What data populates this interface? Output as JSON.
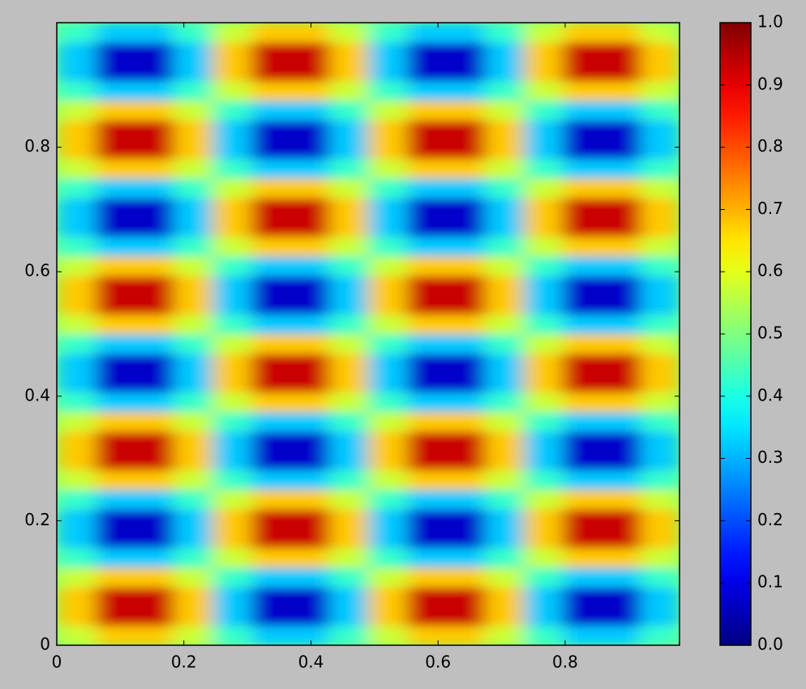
{
  "chart_data": {
    "type": "heatmap",
    "colormap": "jet",
    "xlim": [
      0,
      0.98
    ],
    "ylim": [
      0,
      1
    ],
    "xticks": [
      0,
      0.2,
      0.4,
      0.6,
      0.8
    ],
    "yticks": [
      0,
      0.2,
      0.4,
      0.6,
      0.8
    ],
    "clim": [
      0,
      1
    ],
    "colorbar_ticks": [
      {
        "value": 0,
        "label": "0.0"
      },
      {
        "value": 0.1,
        "label": "0.1"
      },
      {
        "value": 0.2,
        "label": "0.2"
      },
      {
        "value": 0.3,
        "label": "0.3"
      },
      {
        "value": 0.4,
        "label": "0.4"
      },
      {
        "value": 0.5,
        "label": "0.5"
      },
      {
        "value": 0.6,
        "label": "0.6"
      },
      {
        "value": 0.7,
        "label": "0.7"
      },
      {
        "value": 0.8,
        "label": "0.8"
      },
      {
        "value": 0.9,
        "label": "0.9"
      },
      {
        "value": 1,
        "label": "1.0"
      }
    ],
    "z": [
      [
        0.573,
        0.677,
        0.677,
        0.573,
        0.427,
        0.323,
        0.323,
        0.427,
        0.573,
        0.677,
        0.677,
        0.573,
        0.427,
        0.323,
        0.323,
        0.427
      ],
      [
        0.677,
        0.927,
        0.927,
        0.677,
        0.323,
        0.073,
        0.073,
        0.323,
        0.677,
        0.927,
        0.927,
        0.677,
        0.323,
        0.073,
        0.073,
        0.323
      ],
      [
        0.677,
        0.927,
        0.927,
        0.677,
        0.323,
        0.073,
        0.073,
        0.323,
        0.677,
        0.927,
        0.927,
        0.677,
        0.323,
        0.073,
        0.073,
        0.323
      ],
      [
        0.573,
        0.677,
        0.677,
        0.573,
        0.427,
        0.323,
        0.323,
        0.427,
        0.573,
        0.677,
        0.677,
        0.573,
        0.427,
        0.323,
        0.323,
        0.427
      ],
      [
        0.427,
        0.323,
        0.323,
        0.427,
        0.573,
        0.677,
        0.677,
        0.573,
        0.427,
        0.323,
        0.323,
        0.427,
        0.573,
        0.677,
        0.677,
        0.573
      ],
      [
        0.323,
        0.073,
        0.073,
        0.323,
        0.677,
        0.927,
        0.927,
        0.677,
        0.323,
        0.073,
        0.073,
        0.323,
        0.677,
        0.927,
        0.927,
        0.677
      ],
      [
        0.323,
        0.073,
        0.073,
        0.323,
        0.677,
        0.927,
        0.927,
        0.677,
        0.323,
        0.073,
        0.073,
        0.323,
        0.677,
        0.927,
        0.927,
        0.677
      ],
      [
        0.427,
        0.323,
        0.323,
        0.427,
        0.573,
        0.677,
        0.677,
        0.573,
        0.427,
        0.323,
        0.323,
        0.427,
        0.573,
        0.677,
        0.677,
        0.573
      ],
      [
        0.573,
        0.677,
        0.677,
        0.573,
        0.427,
        0.323,
        0.323,
        0.427,
        0.573,
        0.677,
        0.677,
        0.573,
        0.427,
        0.323,
        0.323,
        0.427
      ],
      [
        0.677,
        0.927,
        0.927,
        0.677,
        0.323,
        0.073,
        0.073,
        0.323,
        0.677,
        0.927,
        0.927,
        0.677,
        0.323,
        0.073,
        0.073,
        0.323
      ],
      [
        0.677,
        0.927,
        0.927,
        0.677,
        0.323,
        0.073,
        0.073,
        0.323,
        0.677,
        0.927,
        0.927,
        0.677,
        0.323,
        0.073,
        0.073,
        0.323
      ],
      [
        0.573,
        0.677,
        0.677,
        0.573,
        0.427,
        0.323,
        0.323,
        0.427,
        0.573,
        0.677,
        0.677,
        0.573,
        0.427,
        0.323,
        0.323,
        0.427
      ],
      [
        0.427,
        0.323,
        0.323,
        0.427,
        0.573,
        0.677,
        0.677,
        0.573,
        0.427,
        0.323,
        0.323,
        0.427,
        0.573,
        0.677,
        0.677,
        0.573
      ],
      [
        0.323,
        0.073,
        0.073,
        0.323,
        0.677,
        0.927,
        0.927,
        0.677,
        0.323,
        0.073,
        0.073,
        0.323,
        0.677,
        0.927,
        0.927,
        0.677
      ],
      [
        0.323,
        0.073,
        0.073,
        0.323,
        0.677,
        0.927,
        0.927,
        0.677,
        0.323,
        0.073,
        0.073,
        0.323,
        0.677,
        0.927,
        0.927,
        0.677
      ],
      [
        0.427,
        0.323,
        0.323,
        0.427,
        0.573,
        0.677,
        0.677,
        0.573,
        0.427,
        0.323,
        0.323,
        0.427,
        0.573,
        0.677,
        0.677,
        0.573
      ],
      [
        0.573,
        0.677,
        0.677,
        0.573,
        0.427,
        0.323,
        0.323,
        0.427,
        0.573,
        0.677,
        0.677,
        0.573,
        0.427,
        0.323,
        0.323,
        0.427
      ],
      [
        0.677,
        0.927,
        0.927,
        0.677,
        0.323,
        0.073,
        0.073,
        0.323,
        0.677,
        0.927,
        0.927,
        0.677,
        0.323,
        0.073,
        0.073,
        0.323
      ],
      [
        0.677,
        0.927,
        0.927,
        0.677,
        0.323,
        0.073,
        0.073,
        0.323,
        0.677,
        0.927,
        0.927,
        0.677,
        0.323,
        0.073,
        0.073,
        0.323
      ],
      [
        0.573,
        0.677,
        0.677,
        0.573,
        0.427,
        0.323,
        0.323,
        0.427,
        0.573,
        0.677,
        0.677,
        0.573,
        0.427,
        0.323,
        0.323,
        0.427
      ],
      [
        0.427,
        0.323,
        0.323,
        0.427,
        0.573,
        0.677,
        0.677,
        0.573,
        0.427,
        0.323,
        0.323,
        0.427,
        0.573,
        0.677,
        0.677,
        0.573
      ],
      [
        0.323,
        0.073,
        0.073,
        0.323,
        0.677,
        0.927,
        0.927,
        0.677,
        0.323,
        0.073,
        0.073,
        0.323,
        0.677,
        0.927,
        0.927,
        0.677
      ],
      [
        0.323,
        0.073,
        0.073,
        0.323,
        0.677,
        0.927,
        0.927,
        0.677,
        0.323,
        0.073,
        0.073,
        0.323,
        0.677,
        0.927,
        0.927,
        0.677
      ],
      [
        0.427,
        0.323,
        0.323,
        0.427,
        0.573,
        0.677,
        0.677,
        0.573,
        0.427,
        0.323,
        0.323,
        0.427,
        0.573,
        0.677,
        0.677,
        0.573
      ],
      [
        0.573,
        0.677,
        0.677,
        0.573,
        0.427,
        0.323,
        0.323,
        0.427,
        0.573,
        0.677,
        0.677,
        0.573,
        0.427,
        0.323,
        0.323,
        0.427
      ],
      [
        0.677,
        0.927,
        0.927,
        0.677,
        0.323,
        0.073,
        0.073,
        0.323,
        0.677,
        0.927,
        0.927,
        0.677,
        0.323,
        0.073,
        0.073,
        0.323
      ],
      [
        0.677,
        0.927,
        0.927,
        0.677,
        0.323,
        0.073,
        0.073,
        0.323,
        0.677,
        0.927,
        0.927,
        0.677,
        0.323,
        0.073,
        0.073,
        0.323
      ],
      [
        0.573,
        0.677,
        0.677,
        0.573,
        0.427,
        0.323,
        0.323,
        0.427,
        0.573,
        0.677,
        0.677,
        0.573,
        0.427,
        0.323,
        0.323,
        0.427
      ],
      [
        0.427,
        0.323,
        0.323,
        0.427,
        0.573,
        0.677,
        0.677,
        0.573,
        0.427,
        0.323,
        0.323,
        0.427,
        0.573,
        0.677,
        0.677,
        0.573
      ],
      [
        0.323,
        0.073,
        0.073,
        0.323,
        0.677,
        0.927,
        0.927,
        0.677,
        0.323,
        0.073,
        0.073,
        0.323,
        0.677,
        0.927,
        0.927,
        0.677
      ],
      [
        0.323,
        0.073,
        0.073,
        0.323,
        0.677,
        0.927,
        0.927,
        0.677,
        0.323,
        0.073,
        0.073,
        0.323,
        0.677,
        0.927,
        0.927,
        0.677
      ],
      [
        0.427,
        0.323,
        0.323,
        0.427,
        0.573,
        0.677,
        0.677,
        0.573,
        0.427,
        0.323,
        0.323,
        0.427,
        0.573,
        0.677,
        0.677,
        0.573
      ]
    ]
  }
}
